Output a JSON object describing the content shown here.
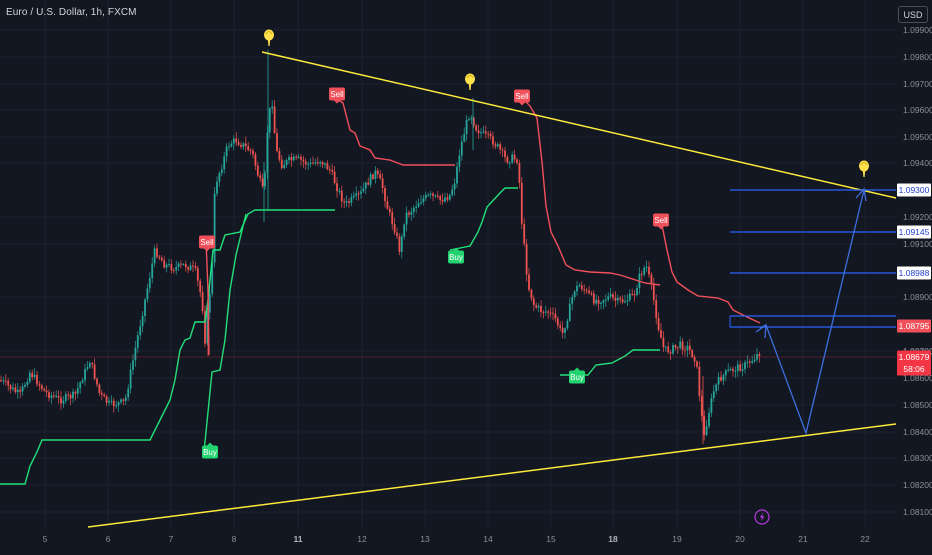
{
  "header": {
    "symbol_title": "Euro / U.S. Dollar, 1h, FXCM",
    "currency_button": "USD"
  },
  "price_axis": {
    "ticks": [
      "1.09900",
      "1.09800",
      "1.09700",
      "1.09600",
      "1.09500",
      "1.09400",
      "1.09200",
      "1.09100",
      "1.08900",
      "1.08700",
      "1.08600",
      "1.08500",
      "1.08400",
      "1.08300",
      "1.08200",
      "1.08100"
    ],
    "partial_tick": "1.08700"
  },
  "time_axis": {
    "labels": [
      {
        "text": "5",
        "bold": false
      },
      {
        "text": "6",
        "bold": false
      },
      {
        "text": "7",
        "bold": false
      },
      {
        "text": "8",
        "bold": false
      },
      {
        "text": "11",
        "bold": true
      },
      {
        "text": "12",
        "bold": false
      },
      {
        "text": "13",
        "bold": false
      },
      {
        "text": "14",
        "bold": false
      },
      {
        "text": "15",
        "bold": false
      },
      {
        "text": "18",
        "bold": true
      },
      {
        "text": "19",
        "bold": false
      },
      {
        "text": "20",
        "bold": false
      },
      {
        "text": "21",
        "bold": false
      },
      {
        "text": "22",
        "bold": false
      }
    ]
  },
  "price_tags": [
    {
      "label": "1.09300",
      "kind": "level"
    },
    {
      "label": "1.09145",
      "kind": "level"
    },
    {
      "label": "1.08988",
      "kind": "level"
    },
    {
      "label": "1.08795",
      "kind": "trail"
    },
    {
      "label": "1.08679",
      "kind": "last"
    },
    {
      "label": "58:06",
      "kind": "countdown"
    }
  ],
  "signals": [
    {
      "label": "Sell",
      "type": "sell"
    },
    {
      "label": "Sell",
      "type": "sell"
    },
    {
      "label": "Sell",
      "type": "sell"
    },
    {
      "label": "Sell",
      "type": "sell"
    },
    {
      "label": "Buy",
      "type": "buy"
    },
    {
      "label": "Buy",
      "type": "buy"
    },
    {
      "label": "Buy",
      "type": "buy"
    }
  ],
  "colors": {
    "background": "#131722",
    "up_candle": "#26a69a",
    "down_candle": "#ef5350",
    "trend_line": "#ffeb3b",
    "target_line": "#2962ff",
    "path_line": "#3d6fe0",
    "trail_buy": "#22e07a",
    "trail_sell": "#f0505a",
    "last_price": "#f23645"
  },
  "icons": {
    "pin_marker": "pin-icon",
    "lightning": "lightning-icon"
  }
}
